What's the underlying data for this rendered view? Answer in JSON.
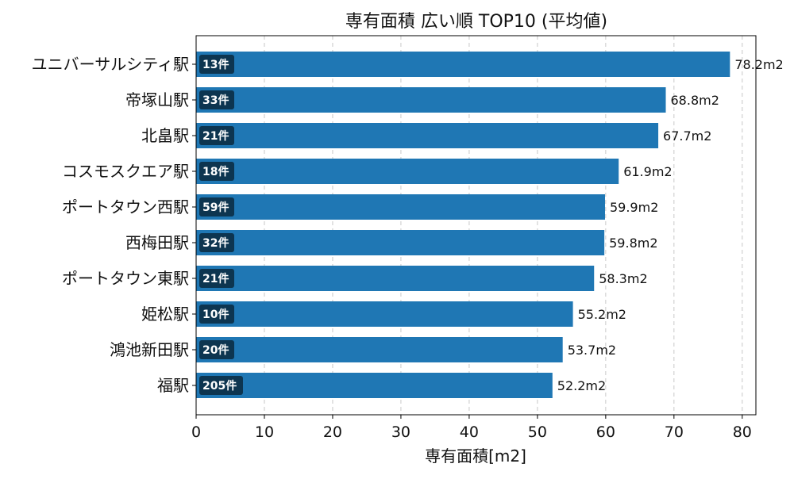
{
  "chart_data": {
    "type": "bar",
    "orientation": "horizontal",
    "title": "専有面積 広い順 TOP10 (平均値)",
    "xlabel": "専有面積[m2]",
    "ylabel": "",
    "xlim": [
      0,
      82
    ],
    "xticks": [
      "0",
      "10",
      "20",
      "30",
      "40",
      "50",
      "60",
      "70",
      "80"
    ],
    "grid": "x-dashed",
    "bar_color": "#1f77b4",
    "badge_color": "#0d3550",
    "categories": [
      "ユニバーサルシティ駅",
      "帝塚山駅",
      "北畠駅",
      "コスモスクエア駅",
      "ポートタウン西駅",
      "西梅田駅",
      "ポートタウン東駅",
      "姫松駅",
      "鴻池新田駅",
      "福駅"
    ],
    "values": [
      78.2,
      68.8,
      67.7,
      61.9,
      59.9,
      59.8,
      58.3,
      55.2,
      53.7,
      52.2
    ],
    "value_labels": [
      "78.2m2",
      "68.8m2",
      "67.7m2",
      "61.9m2",
      "59.9m2",
      "59.8m2",
      "58.3m2",
      "55.2m2",
      "53.7m2",
      "52.2m2"
    ],
    "counts": [
      "13件",
      "33件",
      "21件",
      "18件",
      "59件",
      "32件",
      "21件",
      "10件",
      "20件",
      "205件"
    ]
  }
}
